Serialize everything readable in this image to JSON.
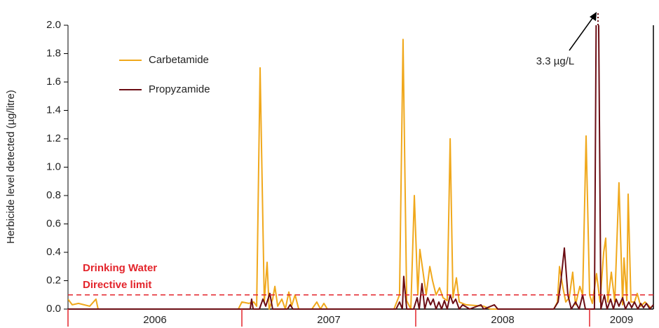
{
  "chart_data": {
    "type": "line",
    "y_label": "Herbicide level detected (µg/litre)",
    "xlim": [
      2006,
      2009.367
    ],
    "xticks": [
      {
        "value": 2006,
        "label": "2006"
      },
      {
        "value": 2007,
        "label": "2007"
      },
      {
        "value": 2008,
        "label": "2008"
      },
      {
        "value": 2009,
        "label": "2009"
      }
    ],
    "ylim": [
      0,
      2
    ],
    "yticks": [
      {
        "value": 0,
        "label": "0.0"
      },
      0.2,
      0.4,
      0.6,
      0.8,
      {
        "value": 1,
        "label": "1.0"
      },
      1.2,
      1.4,
      1.6,
      1.8,
      {
        "value": 2,
        "label": "2.0"
      }
    ],
    "reference_line": {
      "value": 0.1,
      "label": [
        "Drinking Water",
        "Directive limit"
      ],
      "color": "#e3242b"
    },
    "annotation": "3.3 µg/L",
    "series": [
      {
        "name": "Carbetamide",
        "color": "#f0a81c",
        "x": [
          2006.0,
          2006.024,
          2006.06,
          2006.125,
          2006.161,
          2006.173,
          2006.98,
          2007.0,
          2007.04,
          2007.069,
          2007.085,
          2007.105,
          2007.129,
          2007.145,
          2007.157,
          2007.177,
          2007.19,
          2007.206,
          2007.23,
          2007.25,
          2007.27,
          2007.286,
          2007.306,
          2007.327,
          2007.403,
          2007.431,
          2007.452,
          2007.472,
          2007.492,
          2007.786,
          2007.875,
          2007.907,
          2007.927,
          2007.948,
          2007.972,
          2007.992,
          2008.012,
          2008.024,
          2008.04,
          2008.06,
          2008.081,
          2008.097,
          2008.117,
          2008.137,
          2008.157,
          2008.181,
          2008.198,
          2008.214,
          2008.234,
          2008.25,
          2008.29,
          2008.391,
          2008.431,
          2008.794,
          2008.815,
          2008.827,
          2008.847,
          2008.863,
          2008.883,
          2008.903,
          2008.919,
          2008.944,
          2008.96,
          2008.98,
          2009.0,
          2009.016,
          2009.04,
          2009.06,
          2009.081,
          2009.093,
          2009.105,
          2009.125,
          2009.145,
          2009.169,
          2009.19,
          2009.198,
          2009.214,
          2009.222,
          2009.238,
          2009.258,
          2009.274,
          2009.294,
          2009.319,
          2009.351
        ],
        "values": [
          0.07,
          0.03,
          0.04,
          0.02,
          0.07,
          0,
          0,
          0.05,
          0.04,
          0.05,
          0.02,
          1.7,
          0.05,
          0.33,
          0,
          0.07,
          0.16,
          0.02,
          0.07,
          0,
          0.12,
          0.02,
          0.1,
          0,
          0,
          0.05,
          0,
          0.04,
          0,
          0,
          0,
          0.1,
          1.9,
          0.06,
          0,
          0.8,
          0.1,
          0.42,
          0.28,
          0.1,
          0.3,
          0.2,
          0.1,
          0.15,
          0.08,
          0.06,
          1.2,
          0.08,
          0.22,
          0.05,
          0.03,
          0.02,
          0,
          0,
          0.05,
          0.3,
          0.15,
          0.05,
          0.08,
          0.26,
          0.03,
          0.16,
          0.1,
          1.22,
          0.1,
          0.04,
          0.25,
          0.05,
          0.4,
          0.5,
          0.05,
          0.26,
          0.05,
          0.89,
          0.03,
          0.36,
          0.06,
          0.81,
          0.05,
          0.05,
          0.11,
          0.02,
          0.05,
          0.01
        ]
      },
      {
        "name": "Propyzamide",
        "color": "#6b0d14",
        "x": [
          2006.0,
          2007.048,
          2007.056,
          2007.065,
          2007.101,
          2007.121,
          2007.137,
          2007.161,
          2007.177,
          2007.262,
          2007.278,
          2007.294,
          2007.504,
          2007.887,
          2007.907,
          2007.923,
          2007.931,
          2007.948,
          2007.988,
          2008.008,
          2008.02,
          2008.036,
          2008.052,
          2008.069,
          2008.085,
          2008.101,
          2008.117,
          2008.133,
          2008.149,
          2008.165,
          2008.181,
          2008.198,
          2008.214,
          2008.23,
          2008.25,
          2008.27,
          2008.31,
          2008.375,
          2008.391,
          2008.452,
          2008.472,
          2008.794,
          2008.819,
          2008.835,
          2008.855,
          2008.875,
          2008.895,
          2008.919,
          2008.94,
          2008.96,
          2008.976,
          2009.028,
          2009.044,
          2009.065,
          2009.085,
          2009.101,
          2009.121,
          2009.137,
          2009.153,
          2009.169,
          2009.19,
          2009.206,
          2009.226,
          2009.242,
          2009.258,
          2009.278,
          2009.294,
          2009.31,
          2009.327,
          2009.347,
          2009.367
        ],
        "values": [
          0,
          0,
          0.07,
          0,
          0,
          0.07,
          0.02,
          0.11,
          0,
          0,
          0.03,
          0,
          0,
          0,
          0.05,
          0,
          0.23,
          0,
          0,
          0.08,
          0,
          0.18,
          0,
          0.08,
          0.03,
          0.07,
          0,
          0.05,
          0,
          0.06,
          0,
          0.1,
          0.04,
          0.07,
          0,
          0.03,
          0,
          0.03,
          0,
          0.03,
          0,
          0,
          0.05,
          0.2,
          0.43,
          0.1,
          0,
          0.05,
          0,
          0.1,
          0,
          0,
          3.3,
          0,
          0.1,
          0,
          0.07,
          0,
          0.07,
          0.02,
          0.08,
          0,
          0.05,
          0.01,
          0.05,
          0,
          0.04,
          0.01,
          0.04,
          0,
          0.03
        ]
      }
    ]
  }
}
